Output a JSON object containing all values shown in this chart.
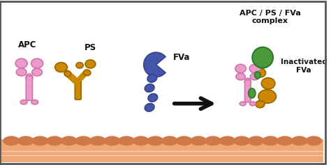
{
  "bg_color": "#ffffff",
  "border_color": "#555555",
  "membrane_color": "#F0A878",
  "membrane_bump_color": "#D07848",
  "apc_color": "#EE99CC",
  "apc_dark": "#CC77AA",
  "ps_color": "#CC8800",
  "ps_dark": "#996600",
  "fva_color": "#4455AA",
  "fva_dark": "#334488",
  "green_color": "#4A9A3A",
  "green_dark": "#2A7A2A",
  "arrow_color": "#111111",
  "text_color": "#111111",
  "label_apc": "APC",
  "label_ps": "PS",
  "label_fva": "FVa",
  "label_complex": "APC / PS / FVa\ncomplex",
  "label_inactivated": "Inactivated\nFVa",
  "figsize": [
    4.74,
    2.37
  ],
  "dpi": 100
}
